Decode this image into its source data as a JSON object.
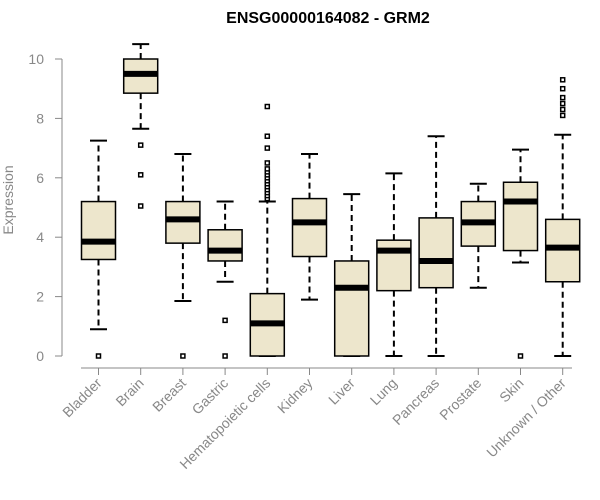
{
  "chart_data": {
    "type": "boxplot",
    "title": "ENSG00000164082 - GRM2",
    "ylabel": "Expression",
    "xlabel": "",
    "ylim": [
      0,
      10.5
    ],
    "yticks": [
      0,
      2,
      4,
      6,
      8,
      10
    ],
    "grid": false,
    "colors": {
      "box_fill": "#ede6cc",
      "box_stroke": "#000000",
      "axis": "#888888"
    },
    "categories": [
      "Bladder",
      "Brain",
      "Breast",
      "Gastric",
      "Hematopoietic cells",
      "Kidney",
      "Liver",
      "Lung",
      "Pancreas",
      "Prostate",
      "Skin",
      "Unknown / Other"
    ],
    "boxes": [
      {
        "category": "Bladder",
        "whislo": 0.9,
        "q1": 3.25,
        "med": 3.85,
        "q3": 5.2,
        "whishi": 7.25,
        "fliers": [
          0.0
        ]
      },
      {
        "category": "Brain",
        "whislo": 7.65,
        "q1": 8.85,
        "med": 9.5,
        "q3": 10.0,
        "whishi": 10.5,
        "fliers": [
          7.1,
          6.1,
          5.05
        ]
      },
      {
        "category": "Breast",
        "whislo": 1.85,
        "q1": 3.8,
        "med": 4.6,
        "q3": 5.2,
        "whishi": 6.8,
        "fliers": [
          0.0
        ]
      },
      {
        "category": "Gastric",
        "whislo": 2.5,
        "q1": 3.2,
        "med": 3.55,
        "q3": 4.25,
        "whishi": 5.2,
        "fliers": [
          1.2,
          0.0
        ]
      },
      {
        "category": "Hematopoietic cells",
        "whislo": 0.0,
        "q1": 0.0,
        "med": 1.1,
        "q3": 2.1,
        "whishi": 5.2,
        "fliers": [
          5.3,
          5.4,
          5.5,
          5.6,
          5.7,
          5.8,
          5.9,
          6.0,
          6.1,
          6.2,
          6.3,
          6.5,
          7.0,
          7.4,
          8.4
        ]
      },
      {
        "category": "Kidney",
        "whislo": 1.9,
        "q1": 3.35,
        "med": 4.5,
        "q3": 5.3,
        "whishi": 6.8,
        "fliers": []
      },
      {
        "category": "Liver",
        "whislo": 0.0,
        "q1": 0.0,
        "med": 2.3,
        "q3": 3.2,
        "whishi": 5.45,
        "fliers": []
      },
      {
        "category": "Lung",
        "whislo": 0.0,
        "q1": 2.2,
        "med": 3.55,
        "q3": 3.9,
        "whishi": 6.15,
        "fliers": []
      },
      {
        "category": "Pancreas",
        "whislo": 0.0,
        "q1": 2.3,
        "med": 3.2,
        "q3": 4.65,
        "whishi": 7.4,
        "fliers": []
      },
      {
        "category": "Prostate",
        "whislo": 2.3,
        "q1": 3.7,
        "med": 4.5,
        "q3": 5.2,
        "whishi": 5.8,
        "fliers": []
      },
      {
        "category": "Skin",
        "whislo": 3.15,
        "q1": 3.55,
        "med": 5.2,
        "q3": 5.85,
        "whishi": 6.95,
        "fliers": [
          0.0
        ]
      },
      {
        "category": "Unknown / Other",
        "whislo": 0.0,
        "q1": 2.5,
        "med": 3.65,
        "q3": 4.6,
        "whishi": 7.45,
        "fliers": [
          8.1,
          8.3,
          8.5,
          8.7,
          9.0,
          9.3
        ]
      }
    ]
  }
}
